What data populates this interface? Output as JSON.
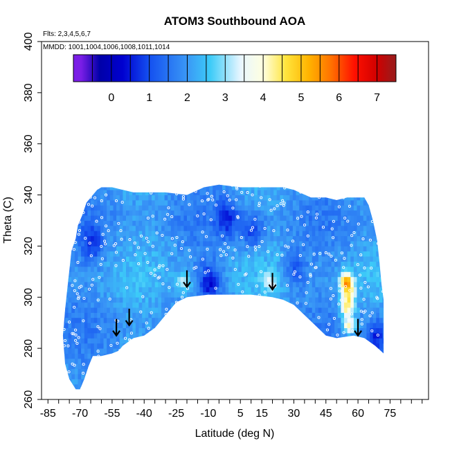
{
  "chart_data": {
    "type": "heatmap",
    "title": "ATOM3 Southbound AOA",
    "flights_note": "Flts: 2,3,4,5,6,7",
    "dates_note": "MMDD: 1001,1004,1006,1008,1011,1014",
    "xlabel": "Latitude (deg N)",
    "ylabel": "Theta (C)",
    "xlim": [
      -88,
      93
    ],
    "ylim": [
      260,
      400
    ],
    "x_ticks": [
      -85,
      -70,
      -55,
      -40,
      -25,
      -10,
      5,
      15,
      30,
      45,
      60,
      75
    ],
    "y_ticks": [
      260,
      280,
      300,
      320,
      340,
      360,
      380,
      400
    ],
    "colorbar": {
      "range": [
        -1,
        7.5
      ],
      "ticks": [
        0,
        1,
        2,
        3,
        4,
        5,
        6,
        7
      ],
      "stops": [
        {
          "v": -0.8,
          "color": "#7a1ee6"
        },
        {
          "v": -0.3,
          "color": "#0000a8"
        },
        {
          "v": 0.3,
          "color": "#0000d0"
        },
        {
          "v": 1.0,
          "color": "#1450f0"
        },
        {
          "v": 2.0,
          "color": "#3a98f6"
        },
        {
          "v": 2.6,
          "color": "#3ccbf8"
        },
        {
          "v": 3.4,
          "color": "#e8f6ff"
        },
        {
          "v": 4.0,
          "color": "#ffffe0"
        },
        {
          "v": 4.6,
          "color": "#ffe43c"
        },
        {
          "v": 5.2,
          "color": "#ffb400"
        },
        {
          "v": 5.8,
          "color": "#ff7000"
        },
        {
          "v": 6.4,
          "color": "#ff1000"
        },
        {
          "v": 7.0,
          "color": "#d00000"
        },
        {
          "v": 7.4,
          "color": "#a01818"
        }
      ]
    },
    "tropopause_arrows": [
      {
        "lat": -53,
        "theta": 285
      },
      {
        "lat": -47,
        "theta": 289
      },
      {
        "lat": -20,
        "theta": 304
      },
      {
        "lat": 20,
        "theta": 303
      },
      {
        "lat": 60,
        "theta": 285
      }
    ],
    "hotspots": [
      {
        "lat": 54,
        "theta": 305,
        "aoa": 5.2
      },
      {
        "lat": 55,
        "theta": 300,
        "aoa": 4.0
      },
      {
        "lat": 54,
        "theta": 295,
        "aoa": 4.3
      },
      {
        "lat": 55,
        "theta": 288,
        "aoa": 4.2
      },
      {
        "lat": -22,
        "theta": 305,
        "aoa": 3.4
      },
      {
        "lat": 18,
        "theta": 305,
        "aoa": 3.2
      }
    ],
    "lowspots": [
      {
        "lat": -10,
        "theta": 305,
        "aoa": 0.3
      },
      {
        "lat": -2,
        "theta": 330,
        "aoa": 0.6
      },
      {
        "lat": 10,
        "theta": 325,
        "aoa": 0.8
      },
      {
        "lat": -65,
        "theta": 320,
        "aoa": 0.8
      },
      {
        "lat": 68,
        "theta": 283,
        "aoa": 0.4
      },
      {
        "lat": 30,
        "theta": 310,
        "aoa": 0.9
      }
    ]
  }
}
